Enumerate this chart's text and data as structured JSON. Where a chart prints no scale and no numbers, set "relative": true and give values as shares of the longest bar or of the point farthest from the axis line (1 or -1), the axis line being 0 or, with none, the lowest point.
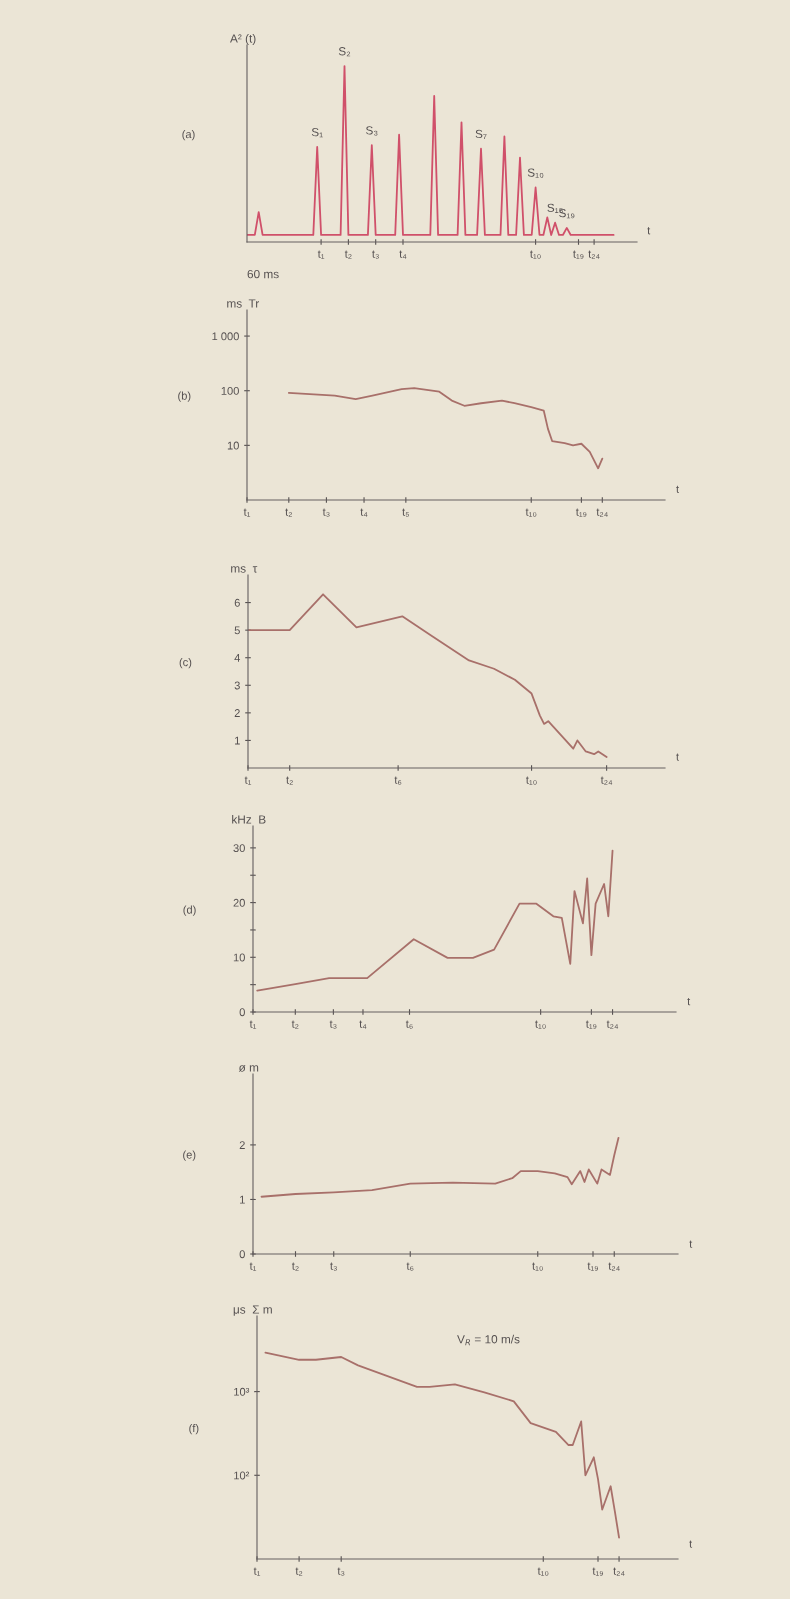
{
  "chart_data": [
    {
      "type": "line",
      "title": "(a)",
      "ylabel": "A² (t)",
      "xlabel": "t",
      "relative": true,
      "categories": [
        null,
        null,
        null,
        null,
        null,
        null,
        null,
        null,
        null,
        null,
        null,
        null,
        null,
        null,
        null,
        null,
        null,
        null,
        null,
        "t₁",
        null,
        null,
        null,
        null,
        null,
        null,
        "t₂",
        null,
        null,
        null,
        null,
        null,
        null,
        "t₃",
        null,
        null,
        null,
        null,
        null,
        null,
        "t₄",
        null,
        null,
        null,
        null,
        null,
        null,
        null,
        null,
        null,
        null,
        null,
        null,
        null,
        null,
        null,
        null,
        null,
        null,
        null,
        null,
        null,
        null,
        null,
        null,
        null,
        null,
        null,
        null,
        null,
        null,
        null,
        null,
        null,
        "t₁₀",
        null,
        null,
        null,
        null,
        null,
        null,
        null,
        null,
        null,
        null,
        "t₁₉",
        null,
        null,
        null,
        "t₂₄",
        null,
        null,
        null,
        null,
        null,
        null,
        null,
        null,
        null,
        null,
        null
      ],
      "annotations": [
        "60 ms",
        {
          "text": "S₁",
          "y": 0.54
        },
        {
          "text": "S₂",
          "y": 1
        },
        {
          "text": "S₃",
          "y": 0.55
        },
        {
          "text": "S₇",
          "y": 0.53
        },
        {
          "text": "S₁₀",
          "y": 0.31
        },
        {
          "text": "S₁₅",
          "y": 0.11
        },
        {
          "text": "S₁₉",
          "y": 0.08
        }
      ],
      "series": [
        {
          "color": "#d0506a",
          "values": [
            0.04,
            null,
            0.04,
            0.17,
            0.04,
            null,
            null,
            null,
            null,
            null,
            null,
            null,
            null,
            null,
            null,
            null,
            null,
            0.04,
            0.54,
            0.04,
            null,
            null,
            null,
            null,
            0.04,
            1,
            0.04,
            null,
            null,
            null,
            null,
            0.04,
            0.55,
            0.04,
            null,
            null,
            null,
            null,
            0.04,
            0.61,
            0.04,
            null,
            null,
            null,
            null,
            null,
            null,
            0.04,
            0.83,
            0.04,
            null,
            null,
            null,
            null,
            0.04,
            0.68,
            0.04,
            null,
            null,
            0.04,
            0.53,
            0.04,
            null,
            null,
            null,
            0.04,
            0.6,
            0.04,
            null,
            0.04,
            0.48,
            0.04,
            null,
            0.04,
            0.31,
            0.04,
            0.04,
            0.14,
            0.04,
            0.11,
            0.04,
            0.04,
            0.08,
            0.04,
            null,
            null,
            null,
            null,
            null,
            null,
            null,
            null,
            null,
            null,
            0.04,
            null,
            null,
            null,
            null,
            null,
            null
          ]
        }
      ]
    },
    {
      "type": "line",
      "title": "(b)",
      "ylabel": "ms  Tr",
      "xlabel": "t",
      "log": "y",
      "ylim": [
        1,
        3000
      ],
      "yticks": [
        10,
        100,
        {
          "value": 1000,
          "label": "1 000"
        }
      ],
      "categories": [
        "t₁",
        null,
        null,
        null,
        null,
        null,
        null,
        null,
        null,
        null,
        "t₂",
        null,
        null,
        null,
        null,
        null,
        null,
        null,
        null,
        "t₃",
        null,
        null,
        null,
        null,
        null,
        null,
        null,
        null,
        "t₄",
        null,
        null,
        null,
        null,
        null,
        null,
        null,
        null,
        null,
        "t₅",
        null,
        null,
        null,
        null,
        null,
        null,
        null,
        null,
        null,
        null,
        null,
        null,
        null,
        null,
        null,
        null,
        null,
        null,
        null,
        null,
        null,
        null,
        null,
        null,
        null,
        null,
        null,
        null,
        null,
        "t₁₀",
        null,
        null,
        null,
        null,
        null,
        null,
        null,
        null,
        null,
        null,
        null,
        "t₁₉",
        null,
        null,
        null,
        null,
        "t₂₄",
        null,
        null,
        null,
        null,
        null,
        null,
        null,
        null,
        null,
        null,
        null,
        null,
        null,
        null,
        null
      ],
      "series": [
        {
          "color": "#a8706a",
          "values": [
            null,
            null,
            null,
            null,
            null,
            null,
            null,
            null,
            null,
            null,
            91,
            null,
            null,
            null,
            null,
            null,
            null,
            null,
            null,
            null,
            null,
            81,
            null,
            null,
            null,
            null,
            70,
            null,
            null,
            null,
            81,
            null,
            null,
            null,
            null,
            null,
            null,
            107,
            null,
            null,
            112,
            null,
            null,
            null,
            null,
            null,
            96,
            null,
            null,
            66,
            null,
            null,
            53,
            null,
            null,
            null,
            59,
            null,
            null,
            null,
            null,
            66,
            null,
            null,
            59,
            null,
            null,
            null,
            50,
            null,
            null,
            43,
            20,
            12,
            null,
            null,
            11,
            null,
            10,
            null,
            10.7,
            null,
            7.6,
            null,
            3.8,
            5.7,
            null,
            null,
            null,
            null,
            null,
            null,
            null,
            null,
            null,
            null,
            null,
            null,
            null,
            null,
            null
          ]
        }
      ]
    },
    {
      "type": "line",
      "title": "(c)",
      "ylabel": "ms  τ",
      "xlabel": "t",
      "ylim": [
        0,
        7
      ],
      "yticks": [
        1,
        2,
        3,
        4,
        5,
        6
      ],
      "categories": [
        "t₁",
        null,
        null,
        null,
        null,
        null,
        null,
        null,
        null,
        null,
        "t₂",
        null,
        null,
        null,
        null,
        null,
        null,
        null,
        null,
        null,
        null,
        null,
        null,
        null,
        null,
        null,
        null,
        null,
        null,
        null,
        null,
        null,
        null,
        null,
        null,
        null,
        "t₆",
        null,
        null,
        null,
        null,
        null,
        null,
        null,
        null,
        null,
        null,
        null,
        null,
        null,
        null,
        null,
        null,
        null,
        null,
        null,
        null,
        null,
        null,
        null,
        null,
        null,
        null,
        null,
        null,
        null,
        null,
        null,
        "t₁₀",
        null,
        null,
        null,
        null,
        null,
        null,
        null,
        null,
        null,
        null,
        null,
        null,
        null,
        null,
        null,
        null,
        null,
        "t₂₄",
        null,
        null,
        null,
        null,
        null,
        null,
        null,
        null,
        null,
        null,
        null,
        null,
        null,
        null
      ],
      "series": [
        {
          "color": "#a8706a",
          "values": [
            5,
            null,
            null,
            null,
            null,
            null,
            null,
            null,
            null,
            null,
            5,
            null,
            null,
            null,
            null,
            null,
            null,
            null,
            6.3,
            null,
            null,
            null,
            null,
            null,
            null,
            null,
            5.1,
            null,
            null,
            null,
            null,
            null,
            null,
            null,
            null,
            null,
            null,
            5.5,
            null,
            null,
            null,
            null,
            null,
            null,
            4.8,
            null,
            null,
            null,
            null,
            null,
            4.2,
            null,
            null,
            3.9,
            null,
            null,
            null,
            null,
            null,
            3.6,
            null,
            null,
            null,
            null,
            3.2,
            null,
            null,
            null,
            2.7,
            null,
            1.9,
            1.6,
            1.7,
            null,
            null,
            1.2,
            null,
            null,
            0.7,
            1,
            null,
            0.6,
            null,
            0.5,
            0.6,
            null,
            0.4,
            null,
            null,
            null,
            null,
            null,
            null,
            null,
            null,
            null,
            null,
            null,
            null,
            null,
            null
          ]
        }
      ]
    },
    {
      "type": "line",
      "title": "(d)",
      "ylabel": "kHz  B",
      "xlabel": "t",
      "ylim": [
        0,
        34
      ],
      "yticks": [
        0,
        {
          "value": 5,
          "label": null
        },
        10,
        {
          "value": 15,
          "label": null
        },
        20,
        {
          "value": 25,
          "label": null
        },
        30
      ],
      "categories": [
        "t₁",
        null,
        null,
        null,
        null,
        null,
        null,
        null,
        null,
        null,
        "t₂",
        null,
        null,
        null,
        null,
        null,
        null,
        null,
        null,
        "t₃",
        null,
        null,
        null,
        null,
        null,
        null,
        "t₄",
        null,
        null,
        null,
        null,
        null,
        null,
        null,
        null,
        null,
        null,
        "t₆",
        null,
        null,
        null,
        null,
        null,
        null,
        null,
        null,
        null,
        null,
        null,
        null,
        null,
        null,
        null,
        null,
        null,
        null,
        null,
        null,
        null,
        null,
        null,
        null,
        null,
        null,
        null,
        null,
        null,
        null,
        "t₁₀",
        null,
        null,
        null,
        null,
        null,
        null,
        null,
        null,
        null,
        null,
        null,
        "t₁₉",
        null,
        null,
        null,
        null,
        "t₂₄",
        null,
        null,
        null,
        null,
        null,
        null,
        null,
        null,
        null,
        null,
        null,
        null,
        null,
        null,
        null
      ],
      "series": [
        {
          "color": "#a8706a",
          "values": [
            null,
            3.9,
            null,
            null,
            null,
            null,
            null,
            null,
            null,
            null,
            5.1,
            null,
            null,
            null,
            null,
            null,
            null,
            null,
            6.2,
            null,
            null,
            null,
            null,
            null,
            null,
            null,
            null,
            6.2,
            null,
            null,
            null,
            null,
            null,
            null,
            null,
            null,
            null,
            null,
            13.3,
            null,
            null,
            null,
            null,
            null,
            null,
            null,
            9.9,
            null,
            null,
            null,
            null,
            null,
            9.9,
            null,
            null,
            null,
            null,
            11.4,
            null,
            null,
            null,
            null,
            null,
            19.8,
            null,
            null,
            null,
            19.8,
            null,
            null,
            null,
            17.5,
            null,
            17.2,
            null,
            8.8,
            22.1,
            null,
            16.2,
            24.4,
            10.4,
            19.8,
            null,
            23.4,
            17.5,
            29.5,
            null,
            null,
            null,
            null,
            null,
            null,
            null,
            null,
            null,
            null,
            null,
            null,
            null,
            null,
            null
          ]
        }
      ]
    },
    {
      "type": "line",
      "title": "(e)",
      "ylabel": "ø m",
      "xlabel": "t",
      "ylim": [
        0,
        3.3
      ],
      "yticks": [
        0,
        1,
        2
      ],
      "categories": [
        "t₁",
        null,
        null,
        null,
        null,
        null,
        null,
        null,
        null,
        null,
        "t₂",
        null,
        null,
        null,
        null,
        null,
        null,
        null,
        null,
        "t₃",
        null,
        null,
        null,
        null,
        null,
        null,
        null,
        null,
        null,
        null,
        null,
        null,
        null,
        null,
        null,
        null,
        null,
        "t₆",
        null,
        null,
        null,
        null,
        null,
        null,
        null,
        null,
        null,
        null,
        null,
        null,
        null,
        null,
        null,
        null,
        null,
        null,
        null,
        null,
        null,
        null,
        null,
        null,
        null,
        null,
        null,
        null,
        null,
        "t₁₀",
        null,
        null,
        null,
        null,
        null,
        null,
        null,
        null,
        null,
        null,
        null,
        null,
        "t₁₉",
        null,
        null,
        null,
        null,
        "t₂₄",
        null,
        null,
        null,
        null,
        null,
        null,
        null,
        null,
        null,
        null,
        null,
        null,
        null,
        null,
        null
      ],
      "series": [
        {
          "color": "#a8706a",
          "values": [
            null,
            null,
            1.05,
            null,
            null,
            null,
            null,
            null,
            null,
            null,
            1.1,
            null,
            null,
            null,
            null,
            null,
            null,
            null,
            null,
            1.13,
            null,
            null,
            null,
            null,
            null,
            null,
            null,
            null,
            1.17,
            null,
            null,
            null,
            null,
            null,
            null,
            null,
            null,
            1.29,
            null,
            null,
            null,
            null,
            null,
            null,
            null,
            null,
            null,
            1.31,
            null,
            null,
            null,
            null,
            null,
            null,
            null,
            null,
            null,
            1.29,
            null,
            null,
            null,
            1.39,
            null,
            1.52,
            null,
            null,
            null,
            1.52,
            null,
            null,
            null,
            1.48,
            null,
            null,
            1.41,
            1.28,
            null,
            1.52,
            1.32,
            1.55,
            null,
            1.29,
            1.55,
            null,
            1.45,
            1.81,
            2.13,
            null,
            null,
            null,
            null,
            null,
            null,
            null,
            null,
            null,
            null,
            null,
            null,
            null,
            null
          ]
        }
      ]
    },
    {
      "type": "line",
      "title": "(f)",
      "ylabel": "μs  Σ m",
      "xlabel": "t",
      "log": "y",
      "ylim": [
        10,
        8000
      ],
      "yticks": [
        {
          "value": 100,
          "label": "10²"
        },
        {
          "value": 1000,
          "label": "10³"
        }
      ],
      "annotations": [
        "V$_{R}$ = 10 m/s"
      ],
      "categories": [
        "t₁",
        null,
        null,
        null,
        null,
        null,
        null,
        null,
        null,
        null,
        "t₂",
        null,
        null,
        null,
        null,
        null,
        null,
        null,
        null,
        null,
        "t₃",
        null,
        null,
        null,
        null,
        null,
        null,
        null,
        null,
        null,
        null,
        null,
        null,
        null,
        null,
        null,
        null,
        null,
        null,
        null,
        null,
        null,
        null,
        null,
        null,
        null,
        null,
        null,
        null,
        null,
        null,
        null,
        null,
        null,
        null,
        null,
        null,
        null,
        null,
        null,
        null,
        null,
        null,
        null,
        null,
        null,
        null,
        null,
        "t₁₀",
        null,
        null,
        null,
        null,
        null,
        null,
        null,
        null,
        null,
        null,
        null,
        null,
        "t₁₉",
        null,
        null,
        null,
        null,
        "t₂₄",
        null,
        null,
        null,
        null,
        null,
        null,
        null,
        null,
        null,
        null,
        null,
        null,
        null,
        null
      ],
      "series": [
        {
          "color": "#a8706a",
          "values": [
            null,
            null,
            2920,
            null,
            null,
            null,
            null,
            null,
            null,
            null,
            2400,
            null,
            null,
            null,
            2400,
            null,
            null,
            null,
            null,
            null,
            2590,
            null,
            null,
            null,
            2060,
            null,
            null,
            null,
            null,
            null,
            null,
            1530,
            null,
            null,
            null,
            null,
            null,
            null,
            1140,
            null,
            null,
            1140,
            null,
            null,
            null,
            null,
            null,
            1220,
            null,
            null,
            null,
            null,
            null,
            null,
            980,
            null,
            null,
            null,
            null,
            null,
            null,
            765,
            null,
            null,
            null,
            420,
            null,
            null,
            null,
            null,
            null,
            330,
            null,
            null,
            230,
            230,
            null,
            440,
            100,
            null,
            164,
            90,
            39,
            null,
            74,
            37,
            18,
            null,
            null,
            null,
            null,
            null,
            null,
            null,
            null,
            null,
            null,
            null,
            null,
            null,
            null
          ]
        }
      ]
    }
  ]
}
